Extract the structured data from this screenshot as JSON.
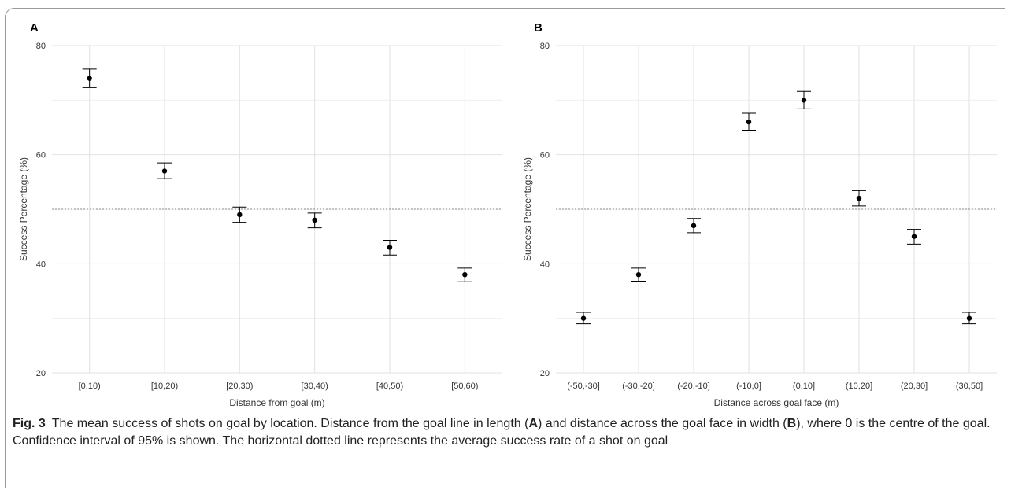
{
  "chart_data": [
    {
      "type": "scatter",
      "panel_label": "A",
      "categories": [
        "[0,10)",
        "[10,20)",
        "[20,30)",
        "[30,40)",
        "[40,50)",
        "[50,60)"
      ],
      "values": [
        74,
        57,
        49,
        48,
        43,
        38
      ],
      "ci_low": [
        72.3,
        55.6,
        47.6,
        46.6,
        41.6,
        36.7
      ],
      "ci_high": [
        75.7,
        58.5,
        50.4,
        49.3,
        44.3,
        39.2
      ],
      "reference_line": 50,
      "xlabel": "Distance from goal (m)",
      "ylabel": "Success Percentage (%)",
      "ylim": [
        20,
        80
      ],
      "yticks": [
        20,
        40,
        60,
        80
      ],
      "grid": true
    },
    {
      "type": "scatter",
      "panel_label": "B",
      "categories": [
        "(-50,-30]",
        "(-30,-20]",
        "(-20,-10]",
        "(-10,0]",
        "(0,10]",
        "(10,20]",
        "(20,30]",
        "(30,50]"
      ],
      "values": [
        30,
        38,
        47,
        66,
        70,
        52,
        45,
        30
      ],
      "ci_low": [
        29,
        36.8,
        45.7,
        64.5,
        68.4,
        50.6,
        43.6,
        29
      ],
      "ci_high": [
        31.1,
        39.2,
        48.3,
        67.6,
        71.6,
        53.4,
        46.3,
        31.1
      ],
      "reference_line": 50,
      "xlabel": "Distance across goal face (m)",
      "ylabel": "Success Percentage (%)",
      "ylim": [
        20,
        80
      ],
      "yticks": [
        20,
        40,
        60,
        80
      ],
      "grid": true
    }
  ],
  "caption": {
    "fig_label": "Fig. 3",
    "part1": "The mean success of shots on goal by location. Distance from the goal line in length (",
    "a": "A",
    "part2": ") and distance across the goal face in width (",
    "b": "B",
    "part3": "), where 0 is the centre of the goal. Confidence interval of 95% is shown. The horizontal dotted line represents the average success rate of a shot on goal"
  },
  "colors": {
    "point": "#000000",
    "grid_major": "#e2e2e2",
    "grid_minor": "#efefef",
    "reference_line": "#8a8a8a"
  }
}
